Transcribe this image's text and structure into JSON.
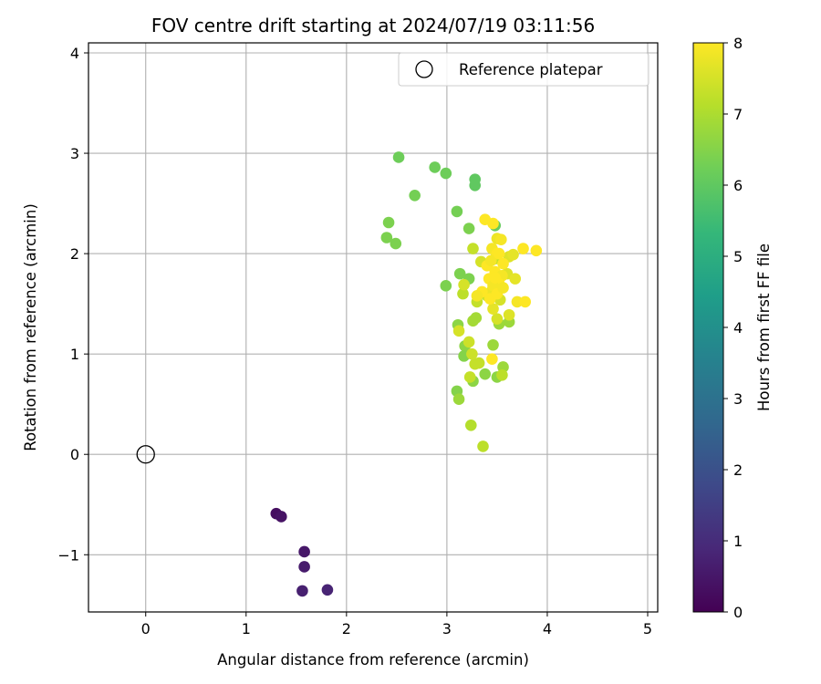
{
  "chart_data": {
    "type": "scatter",
    "title": "FOV centre drift starting at 2024/07/19 03:11:56",
    "xlabel": "Angular distance from reference (arcmin)",
    "ylabel": "Rotation from reference (arcmin)",
    "xlim": [
      -0.57,
      5.1
    ],
    "ylim": [
      -1.57,
      4.1
    ],
    "xticks": [
      0,
      1,
      2,
      3,
      4,
      5
    ],
    "yticks": [
      -1,
      0,
      1,
      2,
      3,
      4
    ],
    "xtick_labels": [
      "0",
      "1",
      "2",
      "3",
      "4",
      "5"
    ],
    "ytick_labels": [
      "−1",
      "0",
      "1",
      "2",
      "3",
      "4"
    ],
    "grid": true,
    "legend": {
      "placement": "top-right",
      "entries": [
        "Reference platepar"
      ]
    },
    "reference_point": {
      "name": "Reference platepar",
      "x": 0,
      "y": 0,
      "marker": "open-circle",
      "color": "#000000"
    },
    "colorbar": {
      "label": "Hours from first FF file",
      "range": [
        0,
        8
      ],
      "ticks": [
        0,
        1,
        2,
        3,
        4,
        5,
        6,
        7,
        8
      ],
      "tick_labels": [
        "0",
        "1",
        "2",
        "3",
        "4",
        "5",
        "6",
        "7",
        "8"
      ],
      "colormap": "viridis",
      "stops": [
        "#440154",
        "#482878",
        "#3e4989",
        "#31688e",
        "#26828e",
        "#1f9e89",
        "#35b779",
        "#6ece58",
        "#b5de2b",
        "#fde725"
      ]
    },
    "points": [
      {
        "x": 1.3,
        "y": -0.59,
        "c": 0.3
      },
      {
        "x": 1.35,
        "y": -0.62,
        "c": 0.4
      },
      {
        "x": 1.58,
        "y": -0.97,
        "c": 0.5
      },
      {
        "x": 1.58,
        "y": -1.12,
        "c": 0.6
      },
      {
        "x": 1.56,
        "y": -1.36,
        "c": 0.7
      },
      {
        "x": 1.81,
        "y": -1.35,
        "c": 0.8
      },
      {
        "x": 2.52,
        "y": 2.96,
        "c": 6.2
      },
      {
        "x": 2.88,
        "y": 2.86,
        "c": 6.2
      },
      {
        "x": 2.99,
        "y": 2.8,
        "c": 6.2
      },
      {
        "x": 3.28,
        "y": 2.74,
        "c": 6.0
      },
      {
        "x": 3.28,
        "y": 2.68,
        "c": 6.0
      },
      {
        "x": 2.68,
        "y": 2.58,
        "c": 6.3
      },
      {
        "x": 3.1,
        "y": 2.42,
        "c": 6.3
      },
      {
        "x": 2.42,
        "y": 2.31,
        "c": 6.4
      },
      {
        "x": 2.4,
        "y": 2.16,
        "c": 6.4
      },
      {
        "x": 2.49,
        "y": 2.1,
        "c": 6.4
      },
      {
        "x": 3.22,
        "y": 2.25,
        "c": 6.4
      },
      {
        "x": 3.48,
        "y": 2.28,
        "c": 6.1
      },
      {
        "x": 2.99,
        "y": 1.68,
        "c": 6.4
      },
      {
        "x": 3.13,
        "y": 1.8,
        "c": 6.4
      },
      {
        "x": 3.22,
        "y": 1.75,
        "c": 6.4
      },
      {
        "x": 3.11,
        "y": 1.29,
        "c": 6.6
      },
      {
        "x": 3.18,
        "y": 1.08,
        "c": 6.6
      },
      {
        "x": 3.17,
        "y": 0.98,
        "c": 6.5
      },
      {
        "x": 3.26,
        "y": 0.73,
        "c": 6.6
      },
      {
        "x": 3.1,
        "y": 0.63,
        "c": 6.5
      },
      {
        "x": 3.12,
        "y": 0.55,
        "c": 6.8
      },
      {
        "x": 3.38,
        "y": 0.8,
        "c": 6.6
      },
      {
        "x": 3.5,
        "y": 0.77,
        "c": 6.6
      },
      {
        "x": 3.56,
        "y": 0.87,
        "c": 6.8
      },
      {
        "x": 3.46,
        "y": 1.09,
        "c": 6.8
      },
      {
        "x": 3.62,
        "y": 1.32,
        "c": 6.8
      },
      {
        "x": 3.52,
        "y": 1.3,
        "c": 6.8
      },
      {
        "x": 3.26,
        "y": 1.33,
        "c": 6.9
      },
      {
        "x": 3.29,
        "y": 1.36,
        "c": 6.9
      },
      {
        "x": 3.24,
        "y": 0.29,
        "c": 7.1
      },
      {
        "x": 3.36,
        "y": 0.08,
        "c": 7.2
      },
      {
        "x": 3.55,
        "y": 0.79,
        "c": 7.2
      },
      {
        "x": 3.23,
        "y": 0.77,
        "c": 7.3
      },
      {
        "x": 3.28,
        "y": 0.9,
        "c": 7.3
      },
      {
        "x": 3.32,
        "y": 0.91,
        "c": 7.3
      },
      {
        "x": 3.25,
        "y": 1.0,
        "c": 7.4
      },
      {
        "x": 3.22,
        "y": 1.12,
        "c": 7.4
      },
      {
        "x": 3.12,
        "y": 1.23,
        "c": 7.5
      },
      {
        "x": 3.5,
        "y": 1.35,
        "c": 7.5
      },
      {
        "x": 3.62,
        "y": 1.39,
        "c": 7.6
      },
      {
        "x": 3.16,
        "y": 1.6,
        "c": 7.2
      },
      {
        "x": 3.3,
        "y": 1.52,
        "c": 7.3
      },
      {
        "x": 3.4,
        "y": 1.58,
        "c": 7.4
      },
      {
        "x": 3.17,
        "y": 1.69,
        "c": 7.5
      },
      {
        "x": 3.26,
        "y": 2.05,
        "c": 7.3
      },
      {
        "x": 3.48,
        "y": 1.95,
        "c": 7.2
      },
      {
        "x": 3.34,
        "y": 1.92,
        "c": 7.5
      },
      {
        "x": 3.53,
        "y": 1.54,
        "c": 7.5
      },
      {
        "x": 3.46,
        "y": 1.45,
        "c": 7.7
      },
      {
        "x": 3.44,
        "y": 1.62,
        "c": 7.8
      },
      {
        "x": 3.6,
        "y": 1.8,
        "c": 7.6
      },
      {
        "x": 3.68,
        "y": 1.75,
        "c": 7.7
      },
      {
        "x": 3.62,
        "y": 1.97,
        "c": 7.6
      },
      {
        "x": 3.66,
        "y": 1.99,
        "c": 7.7
      },
      {
        "x": 3.5,
        "y": 2.15,
        "c": 7.8
      },
      {
        "x": 3.54,
        "y": 2.14,
        "c": 7.9
      },
      {
        "x": 3.38,
        "y": 2.34,
        "c": 8.0
      },
      {
        "x": 3.46,
        "y": 2.3,
        "c": 8.0
      },
      {
        "x": 3.45,
        "y": 2.05,
        "c": 7.9
      },
      {
        "x": 3.5,
        "y": 2.0,
        "c": 8.0
      },
      {
        "x": 3.4,
        "y": 1.88,
        "c": 8.0
      },
      {
        "x": 3.48,
        "y": 1.82,
        "c": 8.0
      },
      {
        "x": 3.55,
        "y": 1.78,
        "c": 7.9
      },
      {
        "x": 3.42,
        "y": 1.75,
        "c": 8.0
      },
      {
        "x": 3.52,
        "y": 1.7,
        "c": 8.0
      },
      {
        "x": 3.46,
        "y": 1.68,
        "c": 7.9
      },
      {
        "x": 3.35,
        "y": 1.62,
        "c": 8.0
      },
      {
        "x": 3.43,
        "y": 1.55,
        "c": 8.0
      },
      {
        "x": 3.5,
        "y": 1.6,
        "c": 8.0
      },
      {
        "x": 3.3,
        "y": 1.58,
        "c": 7.9
      },
      {
        "x": 3.7,
        "y": 1.52,
        "c": 7.9
      },
      {
        "x": 3.78,
        "y": 1.52,
        "c": 8.0
      },
      {
        "x": 3.76,
        "y": 2.05,
        "c": 8.0
      },
      {
        "x": 3.89,
        "y": 2.03,
        "c": 8.0
      },
      {
        "x": 3.45,
        "y": 0.95,
        "c": 8.0
      },
      {
        "x": 3.56,
        "y": 1.9,
        "c": 8.0
      },
      {
        "x": 3.44,
        "y": 1.93,
        "c": 7.9
      },
      {
        "x": 3.52,
        "y": 2.0,
        "c": 8.0
      },
      {
        "x": 3.48,
        "y": 1.76,
        "c": 8.0
      },
      {
        "x": 3.56,
        "y": 1.66,
        "c": 7.9
      }
    ]
  }
}
